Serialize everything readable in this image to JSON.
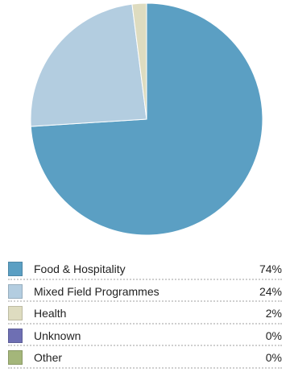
{
  "chart_data": {
    "type": "pie",
    "start_angle_deg": 0,
    "direction": "clockwise",
    "slices": [
      {
        "label": "Food & Hospitality",
        "value": 74,
        "display": "74%",
        "color": "#5b9fc3"
      },
      {
        "label": "Mixed Field Programmes",
        "value": 24,
        "display": "24%",
        "color": "#b3cde0"
      },
      {
        "label": "Health",
        "value": 2,
        "display": "2%",
        "color": "#dedcc0"
      },
      {
        "label": "Unknown",
        "value": 0,
        "display": "0%",
        "color": "#6e6fb3"
      },
      {
        "label": "Other",
        "value": 0,
        "display": "0%",
        "color": "#a4b67a"
      }
    ],
    "legend_placement": "bottom"
  }
}
